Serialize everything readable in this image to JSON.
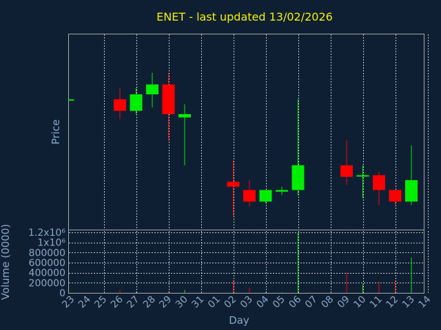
{
  "chart_data": {
    "type": "candlestick",
    "title": "ENET - last updated 13/02/2026",
    "xlabel": "Day",
    "ylabel": "Price",
    "volume_label": "Volume (0000)",
    "colors": {
      "up": "#00ee00",
      "down": "#ff0000",
      "background": "#0f1f33",
      "title": "#f2f200",
      "axis_text": "#8aa6c4"
    },
    "x_ticks": [
      "23",
      "24",
      "25",
      "26",
      "27",
      "28",
      "29",
      "30",
      "31",
      "01",
      "02",
      "03",
      "04",
      "05",
      "06",
      "07",
      "08",
      "09",
      "10",
      "11",
      "12",
      "13",
      "14"
    ],
    "x_gridlines_at": [
      "25",
      "27",
      "29",
      "31",
      "02",
      "04",
      "06",
      "08",
      "10",
      "12",
      "14"
    ],
    "price_range": [
      0,
      100
    ],
    "candles": [
      {
        "day": 0,
        "open": 69,
        "close": 69,
        "high": 69,
        "low": 69
      },
      {
        "day": 3,
        "open": 69,
        "close": 62,
        "high": 76,
        "low": 57
      },
      {
        "day": 4,
        "open": 62,
        "close": 72,
        "high": 76,
        "low": 60
      },
      {
        "day": 5,
        "open": 72,
        "close": 78,
        "high": 85,
        "low": 64
      },
      {
        "day": 6,
        "open": 78,
        "close": 60,
        "high": 85,
        "low": 44
      },
      {
        "day": 7,
        "open": 58,
        "close": 60,
        "high": 66,
        "low": 29
      },
      {
        "day": 10,
        "open": 19,
        "close": 16,
        "high": 32,
        "low": -2
      },
      {
        "day": 11,
        "open": 14,
        "close": 7,
        "high": 20,
        "low": 4
      },
      {
        "day": 12,
        "open": 7,
        "close": 14,
        "high": 14,
        "low": 6
      },
      {
        "day": 13,
        "open": 13,
        "close": 14,
        "high": 16,
        "low": 11
      },
      {
        "day": 14,
        "open": 14,
        "close": 29,
        "high": 69,
        "low": 11
      },
      {
        "day": 17,
        "open": 29,
        "close": 22,
        "high": 44,
        "low": 17
      },
      {
        "day": 18,
        "open": 23,
        "close": 23,
        "high": 29,
        "low": 9
      },
      {
        "day": 19,
        "open": 23,
        "close": 14,
        "high": 25,
        "low": 5
      },
      {
        "day": 20,
        "open": 14,
        "close": 7,
        "high": 14,
        "low": 5
      },
      {
        "day": 21,
        "open": 7,
        "close": 20,
        "high": 41,
        "low": 5
      }
    ],
    "volume_ticks": [
      "0",
      "200000",
      "400000",
      "600000",
      "800000",
      "1x10⁶",
      "1.2x10⁶"
    ],
    "volume_tick_values": [
      0,
      200000,
      400000,
      600000,
      800000,
      1000000,
      1200000
    ],
    "volume_range": [
      0,
      1200000
    ],
    "volumes": [
      {
        "day": 3,
        "value": 60000,
        "dir": "down"
      },
      {
        "day": 4,
        "value": 20000,
        "dir": "up"
      },
      {
        "day": 6,
        "value": 30000,
        "dir": "down"
      },
      {
        "day": 7,
        "value": 60000,
        "dir": "up"
      },
      {
        "day": 10,
        "value": 250000,
        "dir": "down"
      },
      {
        "day": 11,
        "value": 100000,
        "dir": "down"
      },
      {
        "day": 12,
        "value": 15000,
        "dir": "up"
      },
      {
        "day": 13,
        "value": 10000,
        "dir": "up"
      },
      {
        "day": 14,
        "value": 1200000,
        "dir": "up"
      },
      {
        "day": 17,
        "value": 400000,
        "dir": "down"
      },
      {
        "day": 18,
        "value": 170000,
        "dir": "up"
      },
      {
        "day": 19,
        "value": 220000,
        "dir": "down"
      },
      {
        "day": 20,
        "value": 240000,
        "dir": "down"
      },
      {
        "day": 21,
        "value": 700000,
        "dir": "up"
      }
    ]
  }
}
